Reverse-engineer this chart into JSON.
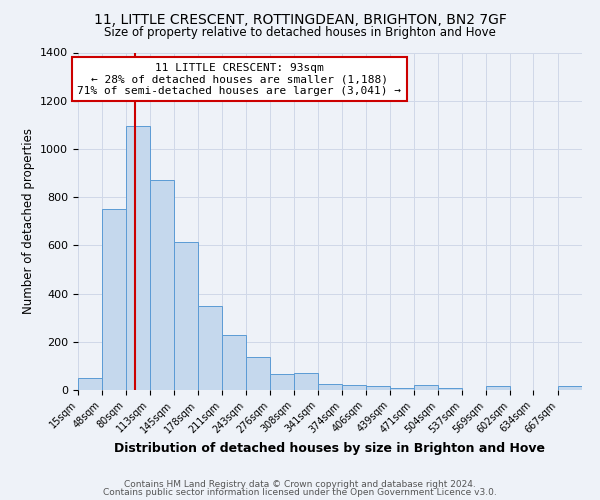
{
  "title": "11, LITTLE CRESCENT, ROTTINGDEAN, BRIGHTON, BN2 7GF",
  "subtitle": "Size of property relative to detached houses in Brighton and Hove",
  "xlabel": "Distribution of detached houses by size in Brighton and Hove",
  "ylabel": "Number of detached properties",
  "bin_labels": [
    "15sqm",
    "48sqm",
    "80sqm",
    "113sqm",
    "145sqm",
    "178sqm",
    "211sqm",
    "243sqm",
    "276sqm",
    "308sqm",
    "341sqm",
    "374sqm",
    "406sqm",
    "439sqm",
    "471sqm",
    "504sqm",
    "537sqm",
    "569sqm",
    "602sqm",
    "634sqm",
    "667sqm"
  ],
  "bin_edges": [
    15,
    48,
    80,
    113,
    145,
    178,
    211,
    243,
    276,
    308,
    341,
    374,
    406,
    439,
    471,
    504,
    537,
    569,
    602,
    634,
    667
  ],
  "bar_heights": [
    50,
    750,
    1095,
    870,
    615,
    350,
    230,
    135,
    65,
    70,
    25,
    20,
    15,
    10,
    20,
    10,
    0,
    15,
    0,
    0,
    15
  ],
  "bar_color": "#c5d8ed",
  "bar_edge_color": "#5b9bd5",
  "ylim": [
    0,
    1400
  ],
  "yticks": [
    0,
    200,
    400,
    600,
    800,
    1000,
    1200,
    1400
  ],
  "property_line_x": 93,
  "property_line_color": "#cc0000",
  "annotation_title": "11 LITTLE CRESCENT: 93sqm",
  "annotation_line1": "← 28% of detached houses are smaller (1,188)",
  "annotation_line2": "71% of semi-detached houses are larger (3,041) →",
  "annotation_box_color": "#cc0000",
  "footer1": "Contains HM Land Registry data © Crown copyright and database right 2024.",
  "footer2": "Contains public sector information licensed under the Open Government Licence v3.0.",
  "background_color": "#eef2f8"
}
